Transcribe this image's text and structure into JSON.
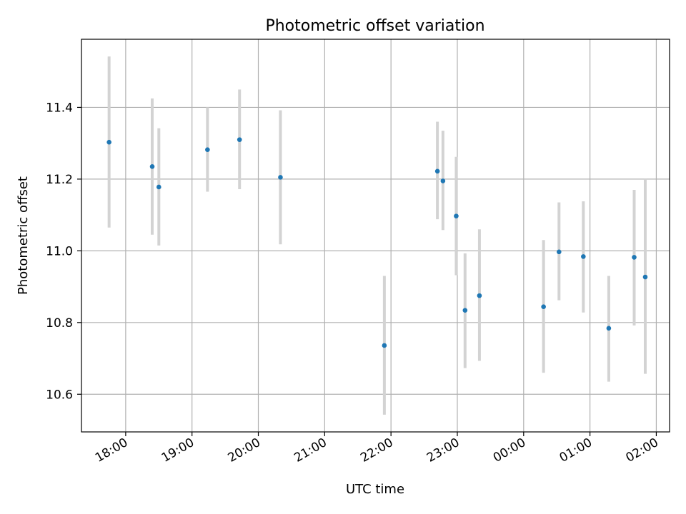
{
  "chart_data": {
    "type": "scatter",
    "title": "Photometric offset variation",
    "xlabel": "UTC time",
    "ylabel": "Photometric offset",
    "x_axis": {
      "kind": "time",
      "start": "17:20",
      "end": "02:12",
      "ticks": [
        {
          "time": "18:00",
          "label": "18:00"
        },
        {
          "time": "19:00",
          "label": "19:00"
        },
        {
          "time": "20:00",
          "label": "20:00"
        },
        {
          "time": "21:00",
          "label": "21:00"
        },
        {
          "time": "22:00",
          "label": "22:00"
        },
        {
          "time": "23:00",
          "label": "23:00"
        },
        {
          "time": "00:00",
          "label": "00:00"
        },
        {
          "time": "01:00",
          "label": "01:00"
        },
        {
          "time": "02:00",
          "label": "02:00"
        }
      ]
    },
    "ylim": [
      10.495,
      11.59
    ],
    "yticks": [
      {
        "value": 10.6,
        "label": "10.6"
      },
      {
        "value": 10.8,
        "label": "10.8"
      },
      {
        "value": 11.0,
        "label": "11.0"
      },
      {
        "value": 11.2,
        "label": "11.2"
      },
      {
        "value": 11.4,
        "label": "11.4"
      }
    ],
    "grid": true,
    "series": [
      {
        "color": "#1f77b4",
        "errorbar_color": "#d3d3d3",
        "points": [
          {
            "time": "17:45",
            "y": 11.303,
            "low": 11.065,
            "high": 11.542
          },
          {
            "time": "18:24",
            "y": 11.235,
            "low": 11.045,
            "high": 11.425
          },
          {
            "time": "18:30",
            "y": 11.178,
            "low": 11.015,
            "high": 11.342
          },
          {
            "time": "19:14",
            "y": 11.282,
            "low": 11.165,
            "high": 11.4
          },
          {
            "time": "19:43",
            "y": 11.31,
            "low": 11.172,
            "high": 11.45
          },
          {
            "time": "20:20",
            "y": 11.205,
            "low": 11.018,
            "high": 11.392
          },
          {
            "time": "21:54",
            "y": 10.736,
            "low": 10.543,
            "high": 10.93
          },
          {
            "time": "22:42",
            "y": 11.222,
            "low": 11.088,
            "high": 11.36
          },
          {
            "time": "22:47",
            "y": 11.195,
            "low": 11.058,
            "high": 11.335
          },
          {
            "time": "22:59",
            "y": 11.097,
            "low": 10.932,
            "high": 11.262
          },
          {
            "time": "23:07",
            "y": 10.834,
            "low": 10.673,
            "high": 10.993
          },
          {
            "time": "23:20",
            "y": 10.875,
            "low": 10.693,
            "high": 11.06
          },
          {
            "time": "00:18",
            "y": 10.844,
            "low": 10.66,
            "high": 11.03
          },
          {
            "time": "00:32",
            "y": 10.997,
            "low": 10.862,
            "high": 11.135
          },
          {
            "time": "00:54",
            "y": 10.984,
            "low": 10.828,
            "high": 11.138
          },
          {
            "time": "01:17",
            "y": 10.784,
            "low": 10.635,
            "high": 10.93
          },
          {
            "time": "01:40",
            "y": 10.982,
            "low": 10.792,
            "high": 11.17
          },
          {
            "time": "01:50",
            "y": 10.927,
            "low": 10.657,
            "high": 11.2
          }
        ]
      }
    ]
  }
}
